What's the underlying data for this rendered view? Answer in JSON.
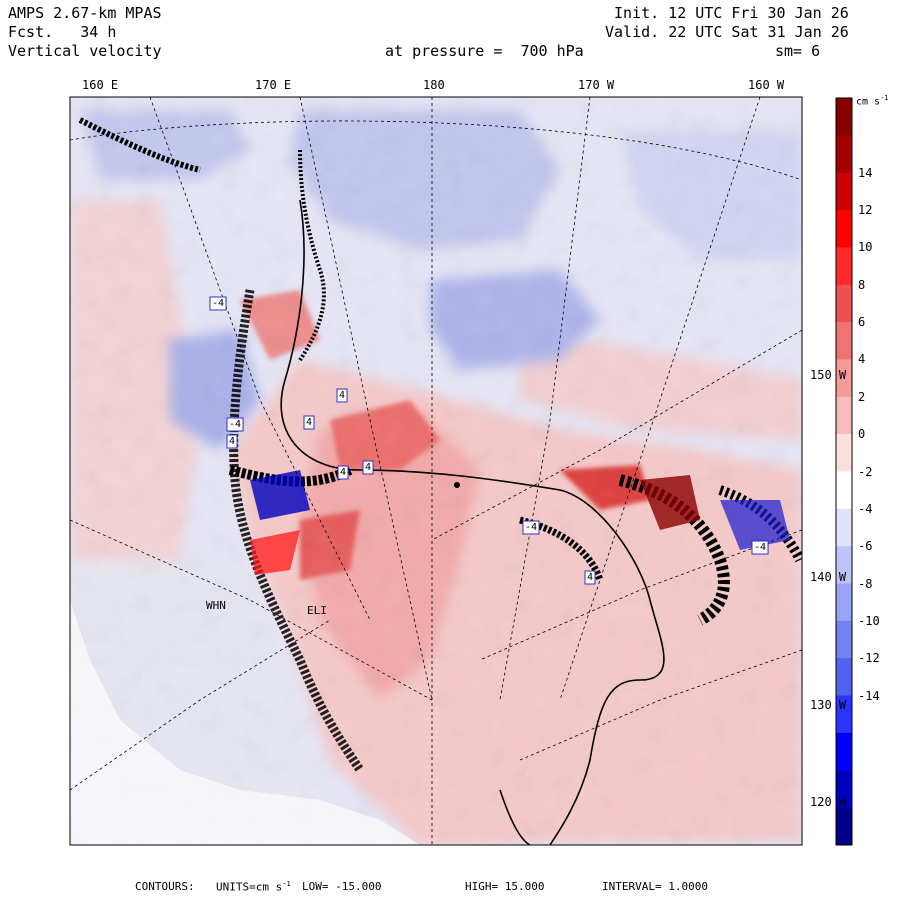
{
  "header": {
    "model": "AMPS 2.67-km MPAS",
    "forecast": "Fcst.   34 h",
    "field": "Vertical velocity",
    "init": "Init. 12 UTC Fri 30 Jan 26",
    "valid": "Valid. 22 UTC Sat 31 Jan 26",
    "pressure": "at pressure =  700 hPa",
    "smoothing": "sm= 6"
  },
  "longitude_labels": [
    "160 E",
    "170 E",
    "180",
    "170 W",
    "160 W"
  ],
  "latitude_labels": [
    "150 W",
    "140 W",
    "130 W",
    "120 W"
  ],
  "station_labels": [
    "WHN",
    "ELI"
  ],
  "contour_labels": [
    "-4",
    "4",
    "-4",
    "4",
    "4",
    "4",
    "4",
    "-4",
    "4",
    "-4"
  ],
  "colorbar": {
    "units": "cm s",
    "units_exp": "-1",
    "levels": [
      "14",
      "12",
      "10",
      "8",
      "6",
      "4",
      "2",
      "0",
      "-2",
      "-4",
      "-6",
      "-8",
      "-10",
      "-12",
      "-14"
    ],
    "colors": [
      "#00008a",
      "#0000bf",
      "#0000ff",
      "#2a36ff",
      "#4f62f0",
      "#7582f0",
      "#9aa4f5",
      "#bec4f8",
      "#e0e2fb",
      "#ffffff",
      "#fbe0e0",
      "#f8bcbc",
      "#f59a9a",
      "#f07474",
      "#f04f4f",
      "#ff2a2a",
      "#ff0000",
      "#cc0000",
      "#a30000",
      "#860000"
    ]
  },
  "footer": {
    "contours": "CONTOURS:",
    "units": "UNITS=cm s",
    "units_exp": "-1",
    "low": "LOW= -15.000",
    "high": "HIGH= 15.000",
    "interval": "INTERVAL= 1.0000"
  }
}
